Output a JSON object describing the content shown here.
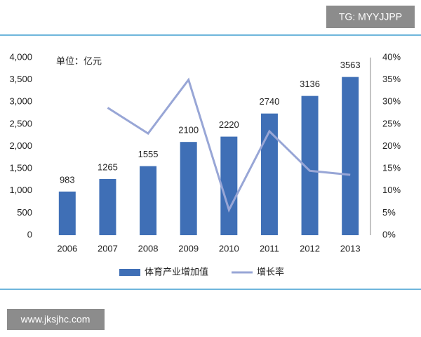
{
  "chart_data": {
    "type": "bar",
    "unit_label": "单位：亿元",
    "categories": [
      "2006",
      "2007",
      "2008",
      "2009",
      "2010",
      "2011",
      "2012",
      "2013"
    ],
    "series": [
      {
        "name": "体育产业增加值",
        "type": "bar",
        "color": "#3f6fb6",
        "values": [
          983,
          1265,
          1555,
          2100,
          2220,
          2740,
          3136,
          3563
        ]
      },
      {
        "name": "增长率",
        "type": "line",
        "axis": "y2",
        "color": "#98a6d6",
        "values": [
          null,
          28.7,
          22.9,
          35.0,
          5.7,
          23.4,
          14.5,
          13.6
        ]
      }
    ],
    "ylim": [
      0,
      4000
    ],
    "yticks": [
      0,
      500,
      {
        "value": 1000,
        "label": "1,000"
      },
      {
        "value": 1500,
        "label": "1,500"
      },
      {
        "value": 2000,
        "label": "2,000"
      },
      {
        "value": 2500,
        "label": "2,500"
      },
      {
        "value": 3000,
        "label": "3,000"
      },
      {
        "value": 3500,
        "label": "3,500"
      },
      {
        "value": 4000,
        "label": "4,000"
      }
    ],
    "y2lim": [
      0,
      40
    ],
    "y2ticks": [
      {
        "value": 0,
        "label": "0%"
      },
      {
        "value": 5,
        "label": "5%"
      },
      {
        "value": 10,
        "label": "10%"
      },
      {
        "value": 15,
        "label": "15%"
      },
      {
        "value": 20,
        "label": "20%"
      },
      {
        "value": 25,
        "label": "25%"
      },
      {
        "value": 30,
        "label": "30%"
      },
      {
        "value": 35,
        "label": "35%"
      },
      {
        "value": 40,
        "label": "40%"
      }
    ],
    "grid": false,
    "legend": "bottom"
  },
  "watermarks": [
    "TG: MYYJJPP",
    "www.jksjhc.com"
  ]
}
